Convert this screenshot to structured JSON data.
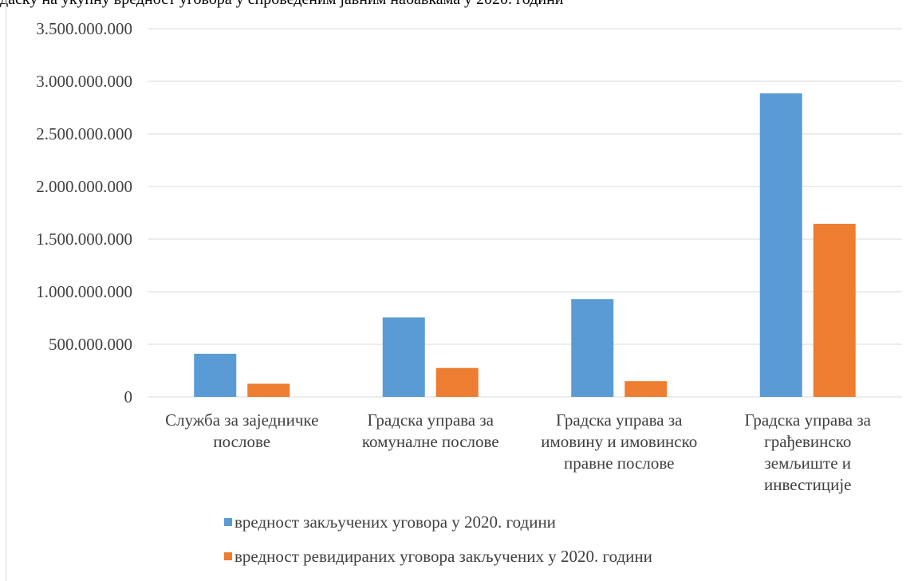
{
  "page": {
    "title_fragment": "даску на укупну вредност уговора у спроведеним јавним набавкама у 2020. години"
  },
  "chart_data": {
    "type": "bar",
    "title": "",
    "xlabel": "",
    "ylabel": "",
    "ylim": [
      0,
      3500000000
    ],
    "yticks": [
      0,
      500000000,
      1000000000,
      1500000000,
      2000000000,
      2500000000,
      3000000000,
      3500000000
    ],
    "ytick_labels": [
      "0",
      "500.000.000",
      "1.000.000.000",
      "1.500.000.000",
      "2.000.000.000",
      "2.500.000.000",
      "3.000.000.000",
      "3.500.000.000"
    ],
    "grid": true,
    "legend_position": "bottom",
    "categories": [
      [
        "Служба за заједничке",
        "послове"
      ],
      [
        "Градска управа за",
        "комуналне послове"
      ],
      [
        "Градска управа за",
        "имовину и имовинско",
        "правне послове"
      ],
      [
        "Градска управа за",
        "грађевинско",
        "земљиште и",
        "инвестиције"
      ]
    ],
    "series": [
      {
        "name": "вредност закључених уговора у 2020. години",
        "color": "#5b9bd5",
        "values": [
          410000000,
          755000000,
          930000000,
          2885000000
        ]
      },
      {
        "name": "вредност ревидираних уговора закључених у 2020. години",
        "color": "#ed7d31",
        "values": [
          125000000,
          275000000,
          150000000,
          1645000000
        ]
      }
    ],
    "colors": {
      "grid": "#d9d9d9",
      "axis": "#d9d9d9",
      "text": "#404040"
    }
  }
}
